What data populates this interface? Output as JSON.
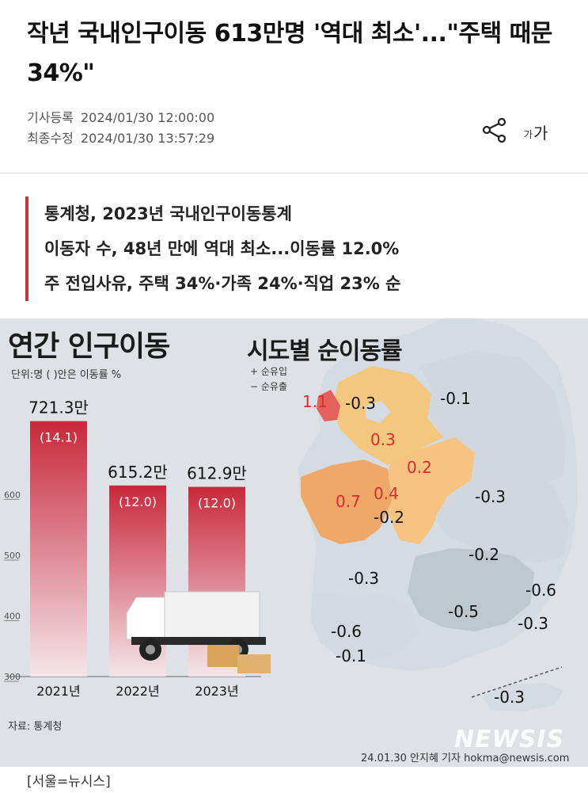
{
  "article": {
    "headline": "작년 국내인구이동 613만명 '역대 최소'...\"주택 때문 34%\"",
    "registered_label": "기사등록",
    "registered_time": "2024/01/30 12:00:00",
    "updated_label": "최종수정",
    "updated_time": "2024/01/30 13:57:29",
    "font_size_small": "가",
    "font_size_large": "가",
    "summary": [
      "통계청, 2023년 국내인구이동통계",
      "이동자 수, 48년 만에 역대 최소...이동률 12.0%",
      "주 전입사유, 주택 34%·가족 24%·직업 23% 순"
    ],
    "caption": "[서울=뉴시스]"
  },
  "icons": {
    "share": "share-icon",
    "font_size": "font-size-icon"
  },
  "colors": {
    "accent_bar": "#d3303a",
    "bar_top": "#c8283a",
    "bar_bottom": "#f4e6ea",
    "positive_region": "#f2b468",
    "negative_region": "#bfc7cf"
  },
  "infographic": {
    "left_title": "연간 인구이동",
    "unit_note": "단위:명 ( )안은 이동률 %",
    "source": "자료: 통계청",
    "right_title": "시도별 순이동률",
    "legend_in": "+ 순유입",
    "legend_out": "− 순유출",
    "credit": "24.01.30 안지혜 기자 hokma@newsis.com",
    "watermark": "NEWSIS"
  },
  "chart_data": [
    {
      "type": "bar",
      "title": "연간 인구이동",
      "categories": [
        "2021년",
        "2022년",
        "2023년"
      ],
      "series": [
        {
          "values": [
            721.3,
            615.2,
            612.9
          ]
        }
      ],
      "value_labels": [
        "721.3만",
        "615.2만",
        "612.9만"
      ],
      "rate_labels": [
        "(14.1)",
        "(12.0)",
        "(12.0)"
      ],
      "rates": [
        14.1,
        12.0,
        12.0
      ],
      "y_ticks": [
        300,
        400,
        500,
        600
      ],
      "ylim": [
        300,
        760
      ]
    },
    {
      "type": "map",
      "title": "시도별 순이동률",
      "region_values": [
        "1.1",
        "-0.3",
        "0.3",
        "-0.1",
        "0.2",
        "0.7",
        "0.4",
        "-0.2",
        "-0.3",
        "-0.2",
        "-0.3",
        "-0.6",
        "-0.5",
        "-0.3",
        "-0.6",
        "-0.1",
        "-0.3"
      ]
    }
  ]
}
